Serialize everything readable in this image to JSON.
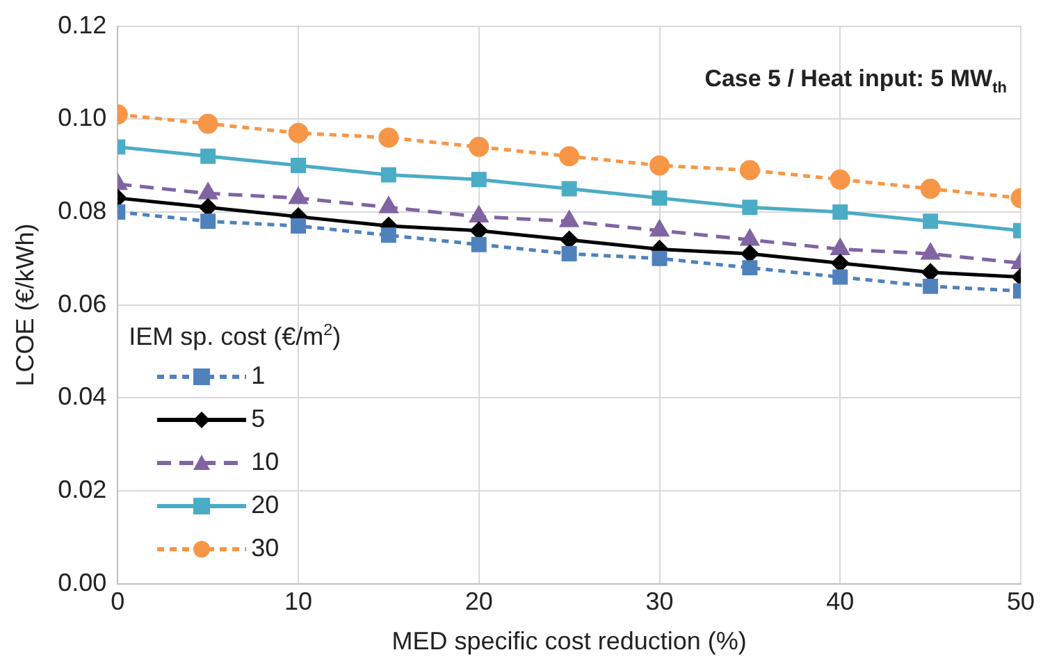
{
  "chart_data": {
    "type": "line",
    "title": "Case 5 / Heat input: 5 MW$_{th}$",
    "xlabel": "MED specific cost reduction (%)",
    "ylabel": "LCOE (€/kWh)",
    "legend_title": "IEM sp. cost (€/m$^{2}$)",
    "x": [
      0,
      5,
      10,
      15,
      20,
      25,
      30,
      35,
      40,
      45,
      50
    ],
    "xlim": [
      0,
      50
    ],
    "xticks": [
      0,
      10,
      20,
      30,
      40,
      50
    ],
    "ylim": [
      0,
      0.12
    ],
    "yticks": [
      {
        "value": 0,
        "label": "0.00"
      },
      {
        "value": 0.02,
        "label": "0.02"
      },
      {
        "value": 0.04,
        "label": "0.04"
      },
      {
        "value": 0.06,
        "label": "0.06"
      },
      {
        "value": 0.08,
        "label": "0.08"
      },
      {
        "value": 0.1,
        "label": "0.10"
      },
      {
        "value": 0.12,
        "label": "0.12"
      }
    ],
    "grid": true,
    "legend": "left",
    "series": [
      {
        "name": "1",
        "color": "#4f81bd",
        "marker": "square",
        "line_style": "dotted",
        "values": [
          0.08,
          0.078,
          0.077,
          0.075,
          0.073,
          0.071,
          0.07,
          0.068,
          0.066,
          0.064,
          0.063
        ]
      },
      {
        "name": "5",
        "color": "#000000",
        "marker": "diamond",
        "line_style": "solid",
        "values": [
          0.083,
          0.081,
          0.079,
          0.077,
          0.076,
          0.074,
          0.072,
          0.071,
          0.069,
          0.067,
          0.066
        ]
      },
      {
        "name": "10",
        "color": "#8064a2",
        "marker": "triangle",
        "line_style": "dashed",
        "values": [
          0.086,
          0.084,
          0.083,
          0.081,
          0.079,
          0.078,
          0.076,
          0.074,
          0.072,
          0.071,
          0.069
        ]
      },
      {
        "name": "20",
        "color": "#4bacc6",
        "marker": "square",
        "line_style": "solid",
        "values": [
          0.094,
          0.092,
          0.09,
          0.088,
          0.087,
          0.085,
          0.083,
          0.081,
          0.08,
          0.078,
          0.076
        ]
      },
      {
        "name": "30",
        "color": "#f79646",
        "marker": "circle",
        "line_style": "dotted",
        "values": [
          0.101,
          0.099,
          0.097,
          0.096,
          0.094,
          0.092,
          0.09,
          0.089,
          0.087,
          0.085,
          0.083
        ]
      }
    ]
  }
}
